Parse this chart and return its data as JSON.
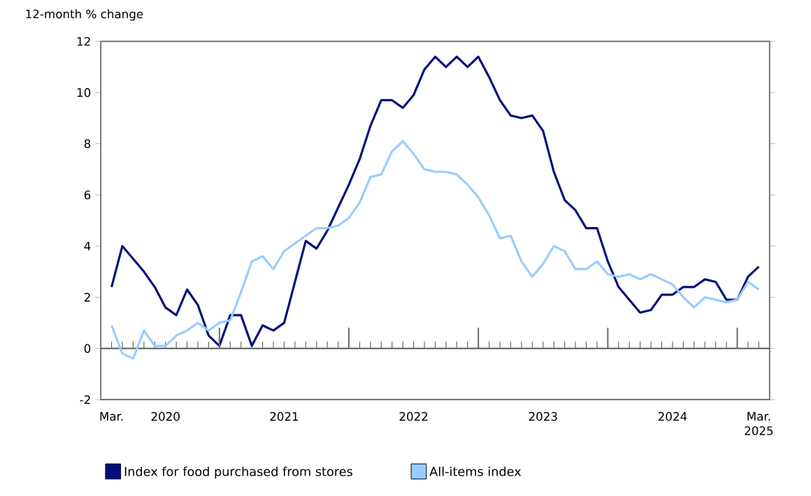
{
  "chart_data": {
    "type": "line",
    "ylabel": "12-month % change",
    "x": [
      "2020-03",
      "2020-04",
      "2020-05",
      "2020-06",
      "2020-07",
      "2020-08",
      "2020-09",
      "2020-10",
      "2020-11",
      "2020-12",
      "2021-01",
      "2021-02",
      "2021-03",
      "2021-04",
      "2021-05",
      "2021-06",
      "2021-07",
      "2021-08",
      "2021-09",
      "2021-10",
      "2021-11",
      "2021-12",
      "2022-01",
      "2022-02",
      "2022-03",
      "2022-04",
      "2022-05",
      "2022-06",
      "2022-07",
      "2022-08",
      "2022-09",
      "2022-10",
      "2022-11",
      "2022-12",
      "2023-01",
      "2023-02",
      "2023-03",
      "2023-04",
      "2023-05",
      "2023-06",
      "2023-07",
      "2023-08",
      "2023-09",
      "2023-10",
      "2023-11",
      "2023-12",
      "2024-01",
      "2024-02",
      "2024-03",
      "2024-04",
      "2024-05",
      "2024-06",
      "2024-07",
      "2024-08",
      "2024-09",
      "2024-10",
      "2024-11",
      "2024-12",
      "2025-01",
      "2025-02",
      "2025-03"
    ],
    "series": [
      {
        "name": "Index for food purchased from stores",
        "color": "#000f7a",
        "values": [
          2.4,
          4.0,
          3.5,
          3.0,
          2.4,
          1.6,
          1.3,
          2.3,
          1.7,
          0.5,
          0.1,
          1.3,
          1.3,
          0.1,
          0.9,
          0.7,
          1.0,
          2.6,
          4.2,
          3.9,
          4.6,
          5.5,
          6.4,
          7.4,
          8.7,
          9.7,
          9.7,
          9.4,
          9.9,
          10.9,
          11.4,
          11.0,
          11.4,
          11.0,
          11.4,
          10.6,
          9.7,
          9.1,
          9.0,
          9.1,
          8.5,
          6.9,
          5.8,
          5.4,
          4.7,
          4.7,
          3.4,
          2.4,
          1.9,
          1.4,
          1.5,
          2.1,
          2.1,
          2.4,
          2.4,
          2.7,
          2.6,
          1.9,
          1.9,
          2.8,
          3.2
        ]
      },
      {
        "name": "All-items index",
        "color": "#99ccff",
        "values": [
          0.9,
          -0.2,
          -0.4,
          0.7,
          0.1,
          0.1,
          0.5,
          0.7,
          1.0,
          0.7,
          1.0,
          1.1,
          2.2,
          3.4,
          3.6,
          3.1,
          3.8,
          4.1,
          4.4,
          4.7,
          4.7,
          4.8,
          5.1,
          5.7,
          6.7,
          6.8,
          7.7,
          8.1,
          7.6,
          7.0,
          6.9,
          6.9,
          6.8,
          6.4,
          5.9,
          5.2,
          4.3,
          4.4,
          3.4,
          2.8,
          3.3,
          4.0,
          3.8,
          3.1,
          3.1,
          3.4,
          2.9,
          2.8,
          2.9,
          2.7,
          2.9,
          2.7,
          2.5,
          2.0,
          1.6,
          2.0,
          1.9,
          1.8,
          1.9,
          2.6,
          2.3
        ]
      }
    ],
    "xlim": [
      "2020-02",
      "2025-04"
    ],
    "xticks": [
      {
        "value": "2020-03",
        "label": "Mar."
      },
      {
        "value": "2020-04",
        "label": null
      },
      {
        "value": "2020-05",
        "label": null
      },
      {
        "value": "2020-06",
        "label": null
      },
      {
        "value": "2020-07",
        "label": null
      },
      {
        "value": "2020-08",
        "label": "2020"
      },
      {
        "value": "2020-09",
        "label": null
      },
      {
        "value": "2020-10",
        "label": null
      },
      {
        "value": "2020-11",
        "label": null
      },
      {
        "value": "2020-12",
        "label": null
      },
      {
        "value": "2021-01",
        "label": null
      },
      {
        "value": "2021-02",
        "label": null
      },
      {
        "value": "2021-03",
        "label": null
      },
      {
        "value": "2021-04",
        "label": null
      },
      {
        "value": "2021-05",
        "label": null
      },
      {
        "value": "2021-06",
        "label": null
      },
      {
        "value": "2021-07",
        "label": "2021"
      },
      {
        "value": "2021-08",
        "label": null
      },
      {
        "value": "2021-09",
        "label": null
      },
      {
        "value": "2021-10",
        "label": null
      },
      {
        "value": "2021-11",
        "label": null
      },
      {
        "value": "2021-12",
        "label": null
      },
      {
        "value": "2022-01",
        "label": null
      },
      {
        "value": "2022-02",
        "label": null
      },
      {
        "value": "2022-03",
        "label": null
      },
      {
        "value": "2022-04",
        "label": null
      },
      {
        "value": "2022-05",
        "label": null
      },
      {
        "value": "2022-06",
        "label": null
      },
      {
        "value": "2022-07",
        "label": "2022"
      },
      {
        "value": "2022-08",
        "label": null
      },
      {
        "value": "2022-09",
        "label": null
      },
      {
        "value": "2022-10",
        "label": null
      },
      {
        "value": "2022-11",
        "label": null
      },
      {
        "value": "2022-12",
        "label": null
      },
      {
        "value": "2023-01",
        "label": null
      },
      {
        "value": "2023-02",
        "label": null
      },
      {
        "value": "2023-03",
        "label": null
      },
      {
        "value": "2023-04",
        "label": null
      },
      {
        "value": "2023-05",
        "label": null
      },
      {
        "value": "2023-06",
        "label": null
      },
      {
        "value": "2023-07",
        "label": "2023"
      },
      {
        "value": "2023-08",
        "label": null
      },
      {
        "value": "2023-09",
        "label": null
      },
      {
        "value": "2023-10",
        "label": null
      },
      {
        "value": "2023-11",
        "label": null
      },
      {
        "value": "2023-12",
        "label": null
      },
      {
        "value": "2024-01",
        "label": null
      },
      {
        "value": "2024-02",
        "label": null
      },
      {
        "value": "2024-03",
        "label": null
      },
      {
        "value": "2024-04",
        "label": null
      },
      {
        "value": "2024-05",
        "label": null
      },
      {
        "value": "2024-06",
        "label": null
      },
      {
        "value": "2024-07",
        "label": "2024"
      },
      {
        "value": "2024-08",
        "label": null
      },
      {
        "value": "2024-09",
        "label": null
      },
      {
        "value": "2024-10",
        "label": null
      },
      {
        "value": "2024-11",
        "label": null
      },
      {
        "value": "2024-12",
        "label": null
      },
      {
        "value": "2025-01",
        "label": null
      },
      {
        "value": "2025-02",
        "label": null
      },
      {
        "value": "2025-03",
        "label": "Mar. 2025"
      }
    ],
    "ylim": [
      -2,
      12
    ],
    "yticks": [
      -2,
      0,
      2,
      4,
      6,
      8,
      10,
      12
    ],
    "ref_lines": [
      {
        "axis": "y",
        "value": 0,
        "color": "#5a5a5a"
      }
    ],
    "grid": false,
    "legend": "bottom",
    "line_style": "solid"
  }
}
